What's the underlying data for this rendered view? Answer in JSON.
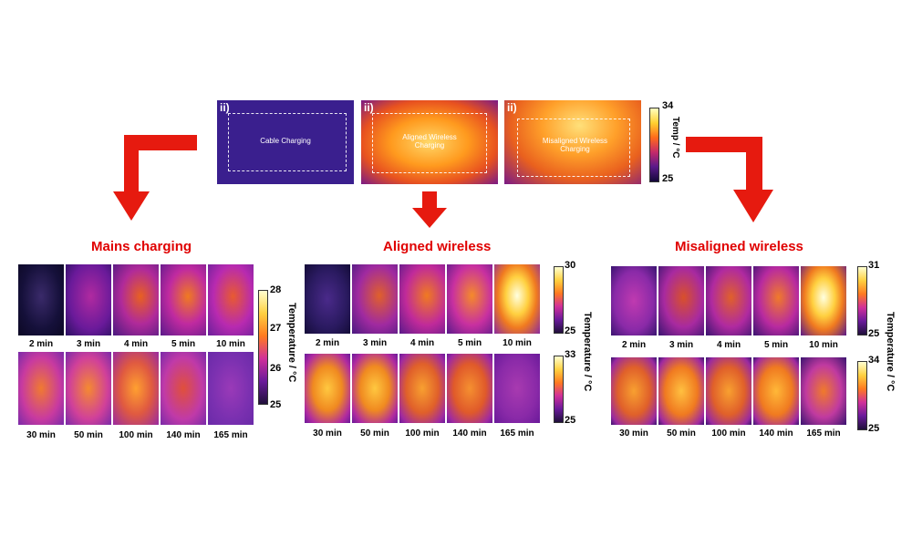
{
  "top": {
    "panels": [
      {
        "label": "ii)",
        "text": "Cable Charging"
      },
      {
        "label": "ii)",
        "text": "Aligned Wireless Charging"
      },
      {
        "label": "ii)",
        "text": "Misaligned Wireless Charging"
      }
    ],
    "colorbar": {
      "max": "34",
      "min": "25",
      "title": "Temp / °C"
    }
  },
  "sections": {
    "mains": {
      "heading": "Mains charging",
      "row1": [
        "2 min",
        "3 min",
        "4 min",
        "5 min",
        "10 min"
      ],
      "row2": [
        "30 min",
        "50 min",
        "100 min",
        "140 min",
        "165 min"
      ],
      "colorbar": {
        "max": "28",
        "mid1": "27",
        "mid2": "26",
        "min": "25",
        "title": "Temperature / °C"
      }
    },
    "aligned": {
      "heading": "Aligned wireless",
      "row1": [
        "2 min",
        "3 min",
        "4 min",
        "5 min",
        "10 min"
      ],
      "row2": [
        "30 min",
        "50 min",
        "100 min",
        "140 min",
        "165 min"
      ],
      "colorbar1": {
        "max": "30",
        "min": "25"
      },
      "colorbar2": {
        "max": "33",
        "min": "25"
      },
      "title": "Temperature / °C"
    },
    "misaligned": {
      "heading": "Misaligned wireless",
      "row1": [
        "2 min",
        "3 min",
        "4 min",
        "5 min",
        "10 min"
      ],
      "row2": [
        "30 min",
        "50 min",
        "100 min",
        "140 min",
        "165 min"
      ],
      "colorbar1": {
        "max": "31",
        "min": "25"
      },
      "colorbar2": {
        "max": "34",
        "min": "25"
      },
      "title": "Temperature / °C"
    }
  },
  "colors": {
    "arrow": "#e61a0f",
    "heading": "#e00000",
    "cold": "#2a1470",
    "hot": "#ffd24a"
  }
}
